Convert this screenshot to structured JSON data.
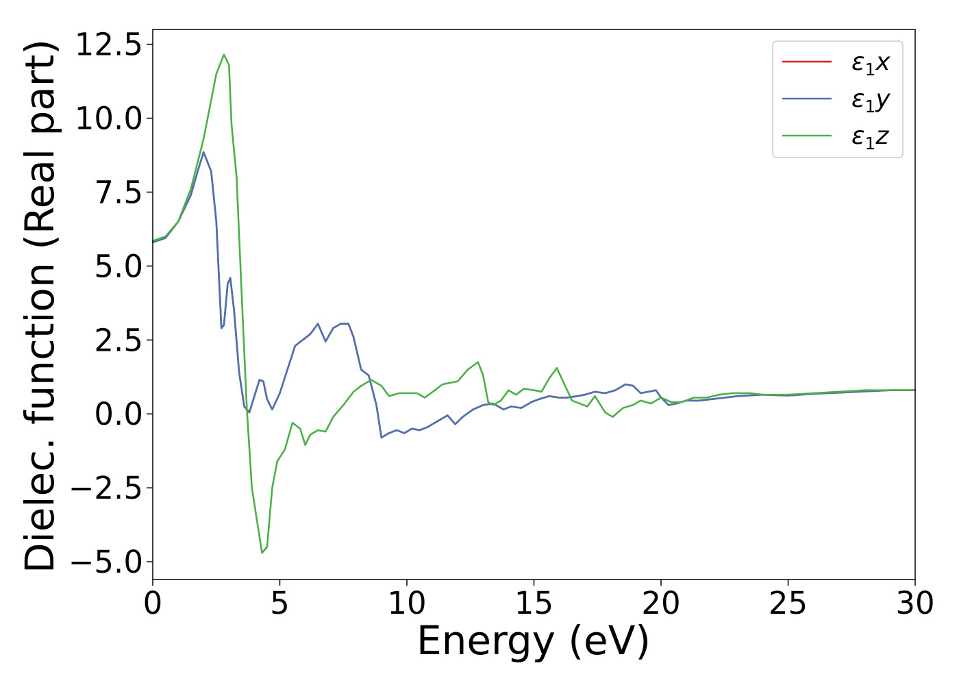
{
  "chart_data": {
    "type": "line",
    "xlabel": "Energy (eV)",
    "ylabel": "Dielec. function (Real part)",
    "xlim": [
      0,
      30
    ],
    "ylim": [
      -5.6,
      13.0
    ],
    "xticks": [
      0,
      5,
      10,
      15,
      20,
      25,
      30
    ],
    "xtick_labels": [
      "0",
      "5",
      "10",
      "15",
      "20",
      "25",
      "30"
    ],
    "yticks": [
      -5.0,
      -2.5,
      0.0,
      2.5,
      5.0,
      7.5,
      10.0,
      12.5
    ],
    "ytick_labels": [
      "−5.0",
      "−2.5",
      "0.0",
      "2.5",
      "5.0",
      "7.5",
      "10.0",
      "12.5"
    ],
    "grid": false,
    "legend_position": "top-right",
    "series": [
      {
        "name": "ε1x",
        "legend_symbol": "ε",
        "legend_sub": "1",
        "legend_var": "x",
        "color": "#e41a1c",
        "x": [
          0,
          0.5,
          1.0,
          1.5,
          1.8,
          2.0,
          2.3,
          2.5,
          2.7,
          2.8,
          2.95,
          3.05,
          3.2,
          3.4,
          3.6,
          3.8,
          4.0,
          4.2,
          4.35,
          4.5,
          4.7,
          5.0,
          5.3,
          5.6,
          5.9,
          6.2,
          6.5,
          6.8,
          7.1,
          7.4,
          7.7,
          7.9,
          8.2,
          8.5,
          8.8,
          9.0,
          9.3,
          9.6,
          9.9,
          10.2,
          10.5,
          10.8,
          11.2,
          11.6,
          11.9,
          12.2,
          12.6,
          13.0,
          13.4,
          13.8,
          14.1,
          14.5,
          14.9,
          15.2,
          15.6,
          16.0,
          16.3,
          16.7,
          17.0,
          17.4,
          17.8,
          18.2,
          18.6,
          18.9,
          19.2,
          19.5,
          19.8,
          20.0,
          20.3,
          20.6,
          21.0,
          21.5,
          22.0,
          22.5,
          23.0,
          24.0,
          25.0,
          26.0,
          27.0,
          28.0,
          29.0,
          30.0
        ],
        "y": [
          5.8,
          5.95,
          6.5,
          7.4,
          8.3,
          8.85,
          8.2,
          6.5,
          2.9,
          3.0,
          4.4,
          4.6,
          3.5,
          1.4,
          0.25,
          0.05,
          0.6,
          1.15,
          1.1,
          0.5,
          0.15,
          0.7,
          1.5,
          2.3,
          2.5,
          2.7,
          3.05,
          2.45,
          2.9,
          3.05,
          3.05,
          2.6,
          1.5,
          1.3,
          0.3,
          -0.8,
          -0.65,
          -0.55,
          -0.65,
          -0.5,
          -0.55,
          -0.45,
          -0.25,
          -0.05,
          -0.35,
          -0.1,
          0.15,
          0.3,
          0.35,
          0.15,
          0.25,
          0.2,
          0.4,
          0.5,
          0.6,
          0.55,
          0.55,
          0.6,
          0.65,
          0.75,
          0.7,
          0.8,
          1.0,
          0.95,
          0.7,
          0.75,
          0.8,
          0.55,
          0.3,
          0.35,
          0.45,
          0.45,
          0.5,
          0.55,
          0.6,
          0.65,
          0.62,
          0.68,
          0.72,
          0.76,
          0.8,
          0.8
        ]
      },
      {
        "name": "ε1y",
        "legend_symbol": "ε",
        "legend_sub": "1",
        "legend_var": "y",
        "color": "#4a72b0",
        "x": [
          0,
          0.5,
          1.0,
          1.5,
          1.8,
          2.0,
          2.3,
          2.5,
          2.7,
          2.8,
          2.95,
          3.05,
          3.2,
          3.4,
          3.6,
          3.8,
          4.0,
          4.2,
          4.35,
          4.5,
          4.7,
          5.0,
          5.3,
          5.6,
          5.9,
          6.2,
          6.5,
          6.8,
          7.1,
          7.4,
          7.7,
          7.9,
          8.2,
          8.5,
          8.8,
          9.0,
          9.3,
          9.6,
          9.9,
          10.2,
          10.5,
          10.8,
          11.2,
          11.6,
          11.9,
          12.2,
          12.6,
          13.0,
          13.4,
          13.8,
          14.1,
          14.5,
          14.9,
          15.2,
          15.6,
          16.0,
          16.3,
          16.7,
          17.0,
          17.4,
          17.8,
          18.2,
          18.6,
          18.9,
          19.2,
          19.5,
          19.8,
          20.0,
          20.3,
          20.6,
          21.0,
          21.5,
          22.0,
          22.5,
          23.0,
          24.0,
          25.0,
          26.0,
          27.0,
          28.0,
          29.0,
          30.0
        ],
        "y": [
          5.8,
          5.95,
          6.5,
          7.4,
          8.3,
          8.85,
          8.2,
          6.5,
          2.9,
          3.0,
          4.4,
          4.6,
          3.5,
          1.4,
          0.25,
          0.05,
          0.6,
          1.15,
          1.1,
          0.5,
          0.15,
          0.7,
          1.5,
          2.3,
          2.5,
          2.7,
          3.05,
          2.45,
          2.9,
          3.05,
          3.05,
          2.6,
          1.5,
          1.3,
          0.3,
          -0.8,
          -0.65,
          -0.55,
          -0.65,
          -0.5,
          -0.55,
          -0.45,
          -0.25,
          -0.05,
          -0.35,
          -0.1,
          0.15,
          0.3,
          0.35,
          0.15,
          0.25,
          0.2,
          0.4,
          0.5,
          0.6,
          0.55,
          0.55,
          0.6,
          0.65,
          0.75,
          0.7,
          0.8,
          1.0,
          0.95,
          0.7,
          0.75,
          0.8,
          0.55,
          0.3,
          0.35,
          0.45,
          0.45,
          0.5,
          0.55,
          0.6,
          0.65,
          0.62,
          0.68,
          0.72,
          0.76,
          0.8,
          0.8
        ]
      },
      {
        "name": "ε1z",
        "legend_symbol": "ε",
        "legend_sub": "1",
        "legend_var": "z",
        "color": "#4daf4a",
        "x": [
          0,
          0.5,
          1.0,
          1.5,
          2.0,
          2.5,
          2.8,
          3.0,
          3.1,
          3.3,
          3.5,
          3.7,
          3.9,
          4.1,
          4.3,
          4.5,
          4.7,
          4.9,
          5.2,
          5.5,
          5.8,
          6.0,
          6.2,
          6.5,
          6.8,
          7.1,
          7.5,
          7.9,
          8.2,
          8.6,
          9.0,
          9.3,
          9.7,
          10.0,
          10.4,
          10.7,
          11.1,
          11.4,
          11.7,
          12.0,
          12.4,
          12.8,
          13.0,
          13.2,
          13.4,
          13.7,
          14.0,
          14.3,
          14.6,
          15.0,
          15.3,
          15.6,
          15.9,
          16.2,
          16.5,
          16.8,
          17.1,
          17.4,
          17.8,
          18.1,
          18.5,
          18.9,
          19.2,
          19.6,
          20.0,
          20.4,
          20.8,
          21.3,
          21.8,
          22.3,
          22.8,
          23.5,
          24.0,
          25.0,
          26.0,
          27.0,
          28.0,
          29.0,
          30.0
        ],
        "y": [
          5.85,
          6.0,
          6.5,
          7.6,
          9.3,
          11.5,
          12.15,
          11.8,
          9.8,
          8.0,
          4.0,
          0.2,
          -2.5,
          -3.6,
          -4.7,
          -4.5,
          -2.5,
          -1.6,
          -1.2,
          -0.3,
          -0.5,
          -1.05,
          -0.7,
          -0.55,
          -0.6,
          -0.1,
          0.3,
          0.75,
          0.95,
          1.15,
          0.95,
          0.6,
          0.7,
          0.7,
          0.7,
          0.55,
          0.8,
          1.0,
          1.05,
          1.1,
          1.5,
          1.75,
          1.3,
          0.4,
          0.3,
          0.45,
          0.8,
          0.65,
          0.85,
          0.8,
          0.75,
          1.2,
          1.55,
          1.0,
          0.45,
          0.35,
          0.25,
          0.6,
          0.05,
          -0.1,
          0.2,
          0.3,
          0.45,
          0.35,
          0.55,
          0.4,
          0.4,
          0.55,
          0.55,
          0.65,
          0.7,
          0.7,
          0.65,
          0.65,
          0.7,
          0.75,
          0.8,
          0.8,
          0.8
        ]
      }
    ]
  }
}
